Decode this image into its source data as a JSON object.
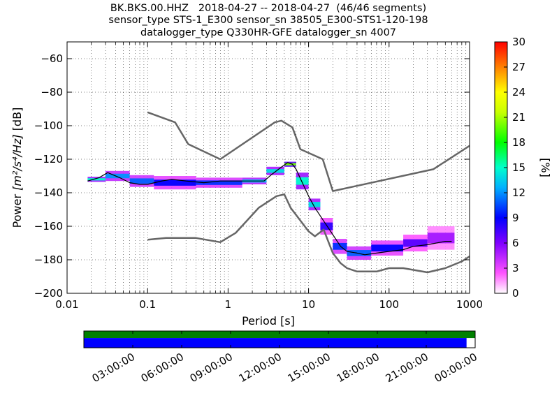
{
  "chart_data": {
    "type": "heatmap",
    "title_lines": [
      "BK.BKS.00.HHZ   2018-04-27 -- 2018-04-27  (46/46 segments)",
      "sensor_type STS-1_E300 sensor_sn 38505_E300-STS1-120-198",
      "datalogger_type Q330HR-GFE datalogger_sn 4007"
    ],
    "xlabel": "Period [s]",
    "ylabel_prefix": "Power ",
    "ylabel_unit": "[m²/s⁴/Hz]",
    "ylabel_suffix": " [dB]",
    "x_scale": "log",
    "xlim": [
      0.01,
      1000
    ],
    "ylim": [
      -200,
      -50
    ],
    "x_ticks": [
      {
        "value": 0.01,
        "label": "0.01"
      },
      {
        "value": 0.1,
        "label": "0.1"
      },
      {
        "value": 1,
        "label": "1"
      },
      {
        "value": 10,
        "label": "10"
      },
      {
        "value": 100,
        "label": "100"
      },
      {
        "value": 1000,
        "label": "1000"
      }
    ],
    "y_ticks": [
      {
        "value": -60,
        "label": "−60"
      },
      {
        "value": -80,
        "label": "−80"
      },
      {
        "value": -100,
        "label": "−100"
      },
      {
        "value": -120,
        "label": "−120"
      },
      {
        "value": -140,
        "label": "−140"
      },
      {
        "value": -160,
        "label": "−160"
      },
      {
        "value": -180,
        "label": "−180"
      },
      {
        "value": -200,
        "label": "−200"
      }
    ],
    "grid": true,
    "colorbar": {
      "label": "[%]",
      "range": [
        0,
        30
      ],
      "ticks": [
        {
          "value": 0,
          "label": "0"
        },
        {
          "value": 3,
          "label": "3"
        },
        {
          "value": 6,
          "label": "6"
        },
        {
          "value": 9,
          "label": "9"
        },
        {
          "value": 12,
          "label": "12"
        },
        {
          "value": 15,
          "label": "15"
        },
        {
          "value": 18,
          "label": "18"
        },
        {
          "value": 21,
          "label": "21"
        },
        {
          "value": 24,
          "label": "24"
        },
        {
          "value": 27,
          "label": "27"
        },
        {
          "value": 30,
          "label": "30"
        }
      ]
    },
    "series": [
      {
        "color": "#666666",
        "points": [
          [
            0.1,
            -92
          ],
          [
            0.22,
            -98
          ],
          [
            0.32,
            -111
          ],
          [
            0.8,
            -120
          ],
          [
            3.8,
            -98
          ],
          [
            4.6,
            -97
          ],
          [
            6.3,
            -101
          ],
          [
            7.9,
            -114
          ],
          [
            15,
            -120
          ],
          [
            20,
            -139
          ],
          [
            354,
            -126
          ],
          [
            1000,
            -112
          ]
        ]
      },
      {
        "color": "#666666",
        "points": [
          [
            0.1,
            -168
          ],
          [
            0.17,
            -167
          ],
          [
            0.4,
            -167
          ],
          [
            0.8,
            -169.5
          ],
          [
            1.24,
            -164
          ],
          [
            2.4,
            -149
          ],
          [
            4,
            -142
          ],
          [
            5,
            -141
          ],
          [
            6,
            -149
          ],
          [
            10,
            -163
          ],
          [
            12,
            -166
          ],
          [
            15.4,
            -162
          ],
          [
            20,
            -176
          ],
          [
            25,
            -182
          ],
          [
            30,
            -185
          ],
          [
            40,
            -187
          ],
          [
            70,
            -187
          ],
          [
            100,
            -185
          ],
          [
            150,
            -185
          ],
          [
            300,
            -187.5
          ],
          [
            500,
            -185
          ],
          [
            800,
            -181
          ],
          [
            1000,
            -178
          ]
        ]
      },
      {
        "color": "#000000",
        "points": [
          [
            0.018,
            -133
          ],
          [
            0.025,
            -131
          ],
          [
            0.032,
            -128
          ],
          [
            0.045,
            -131
          ],
          [
            0.06,
            -134
          ],
          [
            0.08,
            -135
          ],
          [
            0.1,
            -135
          ],
          [
            0.15,
            -133
          ],
          [
            0.2,
            -132
          ],
          [
            0.3,
            -133
          ],
          [
            0.5,
            -134
          ],
          [
            0.8,
            -133
          ],
          [
            1.2,
            -133
          ],
          [
            2,
            -133
          ],
          [
            2.8,
            -133
          ],
          [
            3.5,
            -129
          ],
          [
            4.5,
            -125
          ],
          [
            5.5,
            -122
          ],
          [
            6.3,
            -123
          ],
          [
            7,
            -126
          ],
          [
            8,
            -132
          ],
          [
            10,
            -142
          ],
          [
            12,
            -149
          ],
          [
            15,
            -156
          ],
          [
            20,
            -165
          ],
          [
            25,
            -172
          ],
          [
            30,
            -175
          ],
          [
            40,
            -176
          ],
          [
            50,
            -177
          ],
          [
            70,
            -176
          ],
          [
            100,
            -175
          ],
          [
            150,
            -174
          ],
          [
            200,
            -172
          ],
          [
            300,
            -171
          ],
          [
            500,
            -169
          ],
          [
            600,
            -169
          ]
        ]
      }
    ],
    "density": [
      {
        "x0": 0.018,
        "x1": 0.03,
        "yc": -132,
        "h": 3,
        "p": 15
      },
      {
        "x0": 0.03,
        "x1": 0.06,
        "yc": -130,
        "h": 6,
        "p": 12
      },
      {
        "x0": 0.06,
        "x1": 0.12,
        "yc": -133,
        "h": 7,
        "p": 11
      },
      {
        "x0": 0.12,
        "x1": 0.4,
        "yc": -134,
        "h": 8,
        "p": 9
      },
      {
        "x0": 0.4,
        "x1": 1.5,
        "yc": -134,
        "h": 6,
        "p": 10
      },
      {
        "x0": 1.5,
        "x1": 3,
        "yc": -133,
        "h": 4,
        "p": 13
      },
      {
        "x0": 3,
        "x1": 5,
        "yc": -127,
        "h": 5,
        "p": 14
      },
      {
        "x0": 5,
        "x1": 7,
        "yc": -123,
        "h": 3,
        "p": 20
      },
      {
        "x0": 7,
        "x1": 10,
        "yc": -133,
        "h": 10,
        "p": 15
      },
      {
        "x0": 10,
        "x1": 14,
        "yc": -147,
        "h": 7,
        "p": 14
      },
      {
        "x0": 14,
        "x1": 20,
        "yc": -160,
        "h": 10,
        "p": 8
      },
      {
        "x0": 20,
        "x1": 30,
        "yc": -172,
        "h": 9,
        "p": 10
      },
      {
        "x0": 30,
        "x1": 60,
        "yc": -176,
        "h": 8,
        "p": 11
      },
      {
        "x0": 60,
        "x1": 150,
        "yc": -173,
        "h": 9,
        "p": 9
      },
      {
        "x0": 150,
        "x1": 300,
        "yc": -170,
        "h": 10,
        "p": 7
      },
      {
        "x0": 300,
        "x1": 650,
        "yc": -167,
        "h": 14,
        "p": 5
      }
    ],
    "timeline": {
      "ticks": [
        "03:00:00",
        "06:00:00",
        "09:00:00",
        "12:00:00",
        "15:00:00",
        "18:00:00",
        "21:00:00",
        "00:00:00"
      ],
      "coverage_top_color": "#008000",
      "coverage_bottom_color": "#0000ff",
      "coverage_fraction": 0.978
    }
  }
}
